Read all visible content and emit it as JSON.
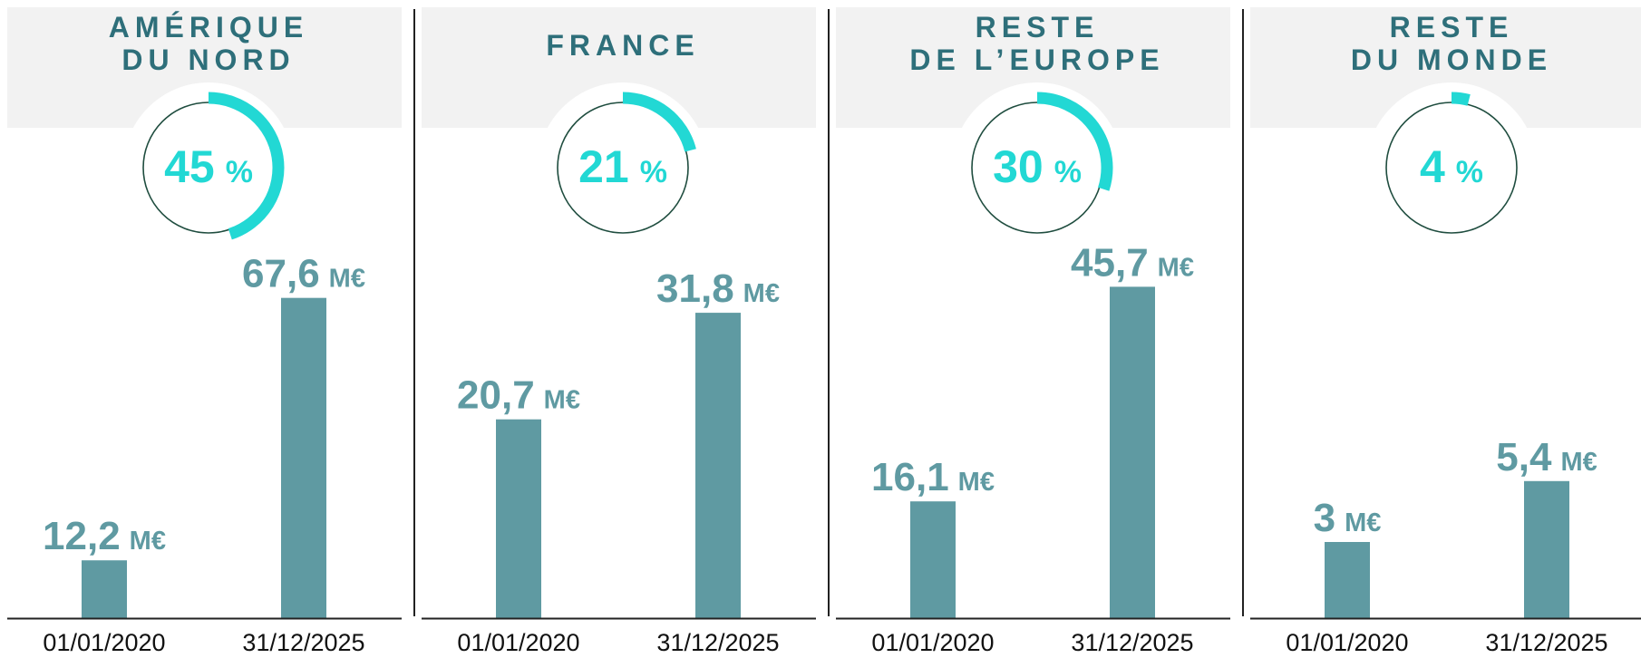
{
  "chart_data": [
    {
      "type": "bar",
      "title": [
        "AMÉRIQUE",
        "DU NORD"
      ],
      "share": 45,
      "share_unit": "%",
      "categories": [
        "01/01/2020",
        "31/12/2025"
      ],
      "values": [
        12.2,
        67.6
      ],
      "value_labels": [
        "12,2",
        "67,6"
      ],
      "unit": "M€",
      "ylim": [
        0,
        75
      ],
      "color": "#5f9aa2"
    },
    {
      "type": "bar",
      "title": [
        "FRANCE"
      ],
      "share": 21,
      "share_unit": "%",
      "categories": [
        "01/01/2020",
        "31/12/2025"
      ],
      "values": [
        20.7,
        31.8
      ],
      "value_labels": [
        "20,7",
        "31,8"
      ],
      "unit": "M€",
      "ylim": [
        0,
        37
      ],
      "color": "#5f9aa2"
    },
    {
      "type": "bar",
      "title": [
        "RESTE",
        "DE L’EUROPE"
      ],
      "share": 30,
      "share_unit": "%",
      "categories": [
        "01/01/2020",
        "31/12/2025"
      ],
      "values": [
        16.1,
        45.7
      ],
      "value_labels": [
        "16,1",
        "45,7"
      ],
      "unit": "M€",
      "ylim": [
        0,
        49
      ],
      "color": "#5f9aa2"
    },
    {
      "type": "bar",
      "title": [
        "RESTE",
        "DU MONDE"
      ],
      "share": 4,
      "share_unit": "%",
      "categories": [
        "01/01/2020",
        "31/12/2025"
      ],
      "values": [
        3,
        5.4
      ],
      "value_labels": [
        "3",
        "5,4"
      ],
      "unit": "M€",
      "ylim": [
        0,
        14
      ],
      "color": "#5f9aa2"
    }
  ]
}
